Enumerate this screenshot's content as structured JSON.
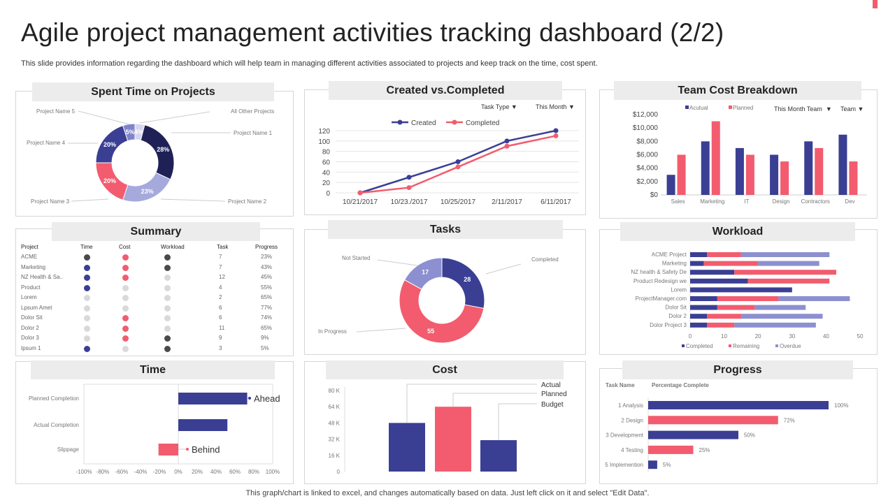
{
  "title": "Agile project management activities tracking dashboard (2/2)",
  "subtitle": "This slide provides information regarding the dashboard which will help team in managing different activities associated to projects and keep track on the time, cost spent.",
  "footer": "This graph/chart is linked to excel,  and changes automatically based on data. Just left click on it and select \"Edit Data\".",
  "colors": {
    "navy": "#3a3f94",
    "pink": "#f25c6e",
    "lavender": "#8c8fd0",
    "dark": "#1f2156",
    "light": "#a6a9dc",
    "grey": "#d9d9d9",
    "darkgrey": "#4a4a4a"
  },
  "panels": {
    "spent": "Spent Time on Projects",
    "created": "Created vs.Completed",
    "team": "Team Cost Breakdown",
    "summary": "Summary",
    "tasks": "Tasks",
    "workload": "Workload",
    "time": "Time",
    "cost": "Cost",
    "progress": "Progress"
  },
  "filters": {
    "task_type": "Task Type",
    "this_month": "This Month",
    "this_month_team": "This Month Team",
    "team": "Team"
  },
  "summary": {
    "headers": [
      "Project",
      "Time",
      "Cost",
      "Workload",
      "Task",
      "Progress"
    ],
    "rows": [
      [
        "ACME",
        "darkgrey",
        "pink",
        "darkgrey",
        "7",
        "23%"
      ],
      [
        "Marketing",
        "navy",
        "pink",
        "darkgrey",
        "7",
        "43%"
      ],
      [
        "NZ Health & Sa..",
        "navy",
        "pink",
        "grey",
        "12",
        "45%"
      ],
      [
        "Product",
        "navy",
        "grey",
        "grey",
        "4",
        "55%"
      ],
      [
        "Lorem",
        "grey",
        "grey",
        "grey",
        "2",
        "65%"
      ],
      [
        "Lpsum Amet",
        "grey",
        "grey",
        "grey",
        "6",
        "77%"
      ],
      [
        "Dolor Sit",
        "grey",
        "pink",
        "grey",
        "6",
        "74%"
      ],
      [
        "Dolor 2",
        "grey",
        "pink",
        "grey",
        "11",
        "65%"
      ],
      [
        "Dolor 3",
        "grey",
        "pink",
        "darkgrey",
        "9",
        "9%"
      ],
      [
        "Ipsum 1",
        "navy",
        "grey",
        "darkgrey",
        "3",
        "5%"
      ]
    ]
  },
  "chart_data": [
    {
      "id": "spent",
      "type": "pie",
      "title": "Spent Time on Projects",
      "labels": [
        "All Other Projects",
        "Project Name 1",
        "Project Name 2",
        "Project Name 3",
        "Project Name 4",
        "Project Name 5"
      ],
      "values": [
        4,
        28,
        23,
        20,
        20,
        5
      ],
      "value_labels": [
        "4%",
        "28%",
        "23%",
        "20%",
        "20%",
        "5%"
      ],
      "colors": [
        "#d5d6ee",
        "#1f2156",
        "#a6a9dc",
        "#f25c6e",
        "#3a3f94",
        "#8084cc"
      ]
    },
    {
      "id": "created",
      "type": "line",
      "title": "Created vs.Completed",
      "categories": [
        "10/21/2017",
        "10/23./2017",
        "10/25/2017",
        "2/11/2017",
        "6/11/2017"
      ],
      "series": [
        {
          "name": "Created",
          "values": [
            0,
            30,
            60,
            100,
            120
          ],
          "color": "#3a3f94"
        },
        {
          "name": "Completed",
          "values": [
            0,
            10,
            50,
            90,
            110
          ],
          "color": "#f25c6e"
        }
      ],
      "ylim": [
        0,
        120
      ],
      "yticks": [
        "0",
        "20",
        "40",
        "60",
        "80",
        "100",
        "120"
      ]
    },
    {
      "id": "team",
      "type": "bar",
      "title": "Team Cost Breakdown",
      "categories": [
        "Sales",
        "Marketing",
        "IT",
        "Design",
        "Contractors",
        "Dev"
      ],
      "series": [
        {
          "name": "Acutual",
          "values": [
            3000,
            8000,
            7000,
            6000,
            8000,
            9000
          ],
          "color": "#3a3f94"
        },
        {
          "name": "Planned",
          "values": [
            6000,
            11000,
            6000,
            5000,
            7000,
            5000
          ],
          "color": "#f25c6e"
        }
      ],
      "ylim": [
        0,
        12000
      ],
      "yticks": [
        "$0",
        "$2,000",
        "$4,000",
        "$6,000",
        "$8,000",
        "$10,000",
        "$12,000"
      ]
    },
    {
      "id": "tasks",
      "type": "pie",
      "title": "Tasks",
      "labels": [
        "Completed",
        "In Progress",
        "Not Started"
      ],
      "values": [
        28,
        55,
        17
      ],
      "value_labels": [
        "28",
        "55",
        "17"
      ],
      "colors": [
        "#3a3f94",
        "#f25c6e",
        "#8c8fd0"
      ]
    },
    {
      "id": "workload",
      "type": "bar",
      "stacked": true,
      "orientation": "horizontal",
      "title": "Workload",
      "categories": [
        "ACME Project",
        "Marketing",
        "NZ health & Safety De",
        "Product Redesign we",
        "Lorem",
        "ProjectManager.com",
        "Dolor Sit",
        "Dolor 2",
        "Dolor Project 3"
      ],
      "series": [
        {
          "name": "Completed",
          "values": [
            5,
            4,
            13,
            17,
            30,
            8,
            8,
            5,
            5
          ],
          "color": "#3a3f94"
        },
        {
          "name": "Remaining",
          "values": [
            10,
            16,
            30,
            24,
            0,
            18,
            11,
            10,
            8
          ],
          "color": "#f25c6e"
        },
        {
          "name": "Overdue",
          "values": [
            26,
            18,
            0,
            0,
            0,
            21,
            15,
            24,
            24
          ],
          "color": "#8c8fd0"
        }
      ],
      "xlim": [
        0,
        50
      ],
      "xticks": [
        "0",
        "10",
        "20",
        "30",
        "40",
        "50"
      ]
    },
    {
      "id": "time",
      "type": "bar",
      "orientation": "horizontal",
      "title": "Time",
      "categories": [
        "Planned Completion",
        "Actual Completion",
        "Slippage"
      ],
      "values": [
        73,
        52,
        -21
      ],
      "annotations": [
        "Ahead",
        "",
        "Behind"
      ],
      "xlim": [
        -100,
        100
      ],
      "xticks": [
        "-100%",
        "-80%",
        "-60%",
        "-40%",
        "-20%",
        "0%",
        "20%",
        "40%",
        "60%",
        "80%",
        "100%"
      ]
    },
    {
      "id": "cost",
      "type": "bar",
      "title": "Cost",
      "categories": [
        "Actual",
        "Planned",
        "Budget"
      ],
      "values": [
        48,
        64,
        31
      ],
      "colors": [
        "#3a3f94",
        "#f25c6e",
        "#3a3f94"
      ],
      "ylim": [
        0,
        80
      ],
      "yticks": [
        "0",
        "16 K",
        "32 K",
        "48 K",
        "64 K",
        "80 K"
      ]
    },
    {
      "id": "progress",
      "type": "bar",
      "orientation": "horizontal",
      "title": "Progress",
      "header": [
        "Task Name",
        "Percentage  Complete"
      ],
      "categories": [
        "1 Analysis",
        "2 Design",
        "3 Development",
        "4 Testing",
        "5 Implemention"
      ],
      "values": [
        100,
        72,
        50,
        25,
        5
      ],
      "value_labels": [
        "100%",
        "72%",
        "50%",
        "25%",
        "5%"
      ],
      "colors": [
        "#3a3f94",
        "#f25c6e",
        "#3a3f94",
        "#f25c6e",
        "#3a3f94"
      ],
      "xlim": [
        0,
        100
      ]
    }
  ]
}
